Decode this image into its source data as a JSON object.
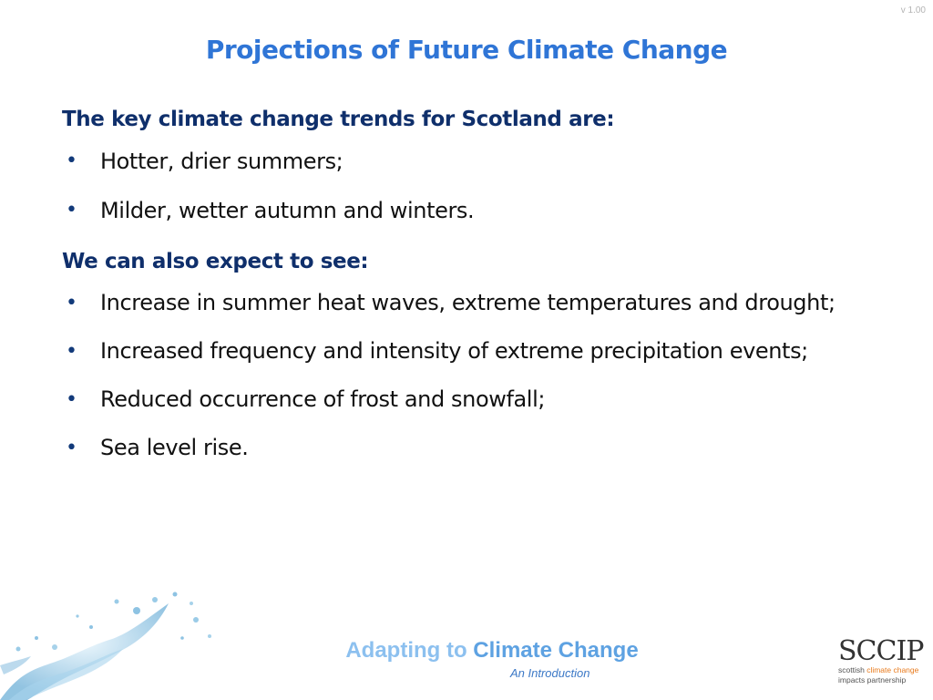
{
  "version": "v 1.00",
  "title": "Projections of Future Climate Change",
  "sections": [
    {
      "heading": "The key climate change trends for Scotland are:",
      "bullets": [
        "Hotter, drier summers;",
        "Milder, wetter autumn and winters."
      ]
    },
    {
      "heading": "We can also expect to see:",
      "bullets": [
        "Increase in summer heat waves, extreme temperatures and drought;",
        "Increased frequency and intensity of extreme precipitation events;",
        "Reduced occurrence of frost and snowfall;",
        "Sea level rise."
      ]
    }
  ],
  "bullet_symbol": "•",
  "footer": {
    "title_part1": "Adapting to ",
    "title_part2": "Climate Change",
    "subtitle": "An Introduction"
  },
  "logo": {
    "mark": "SCCIP",
    "line1_a": "scottish ",
    "line1_b": "climate change",
    "line2": "impacts partnership"
  },
  "colors": {
    "title": "#2f75d6",
    "heading": "#0f2f6b",
    "footer_light": "#8cc0ef",
    "footer_dark": "#5ea2e2",
    "logo_accent": "#e87a1c"
  },
  "icons": {
    "splash": "water-splash-icon"
  }
}
